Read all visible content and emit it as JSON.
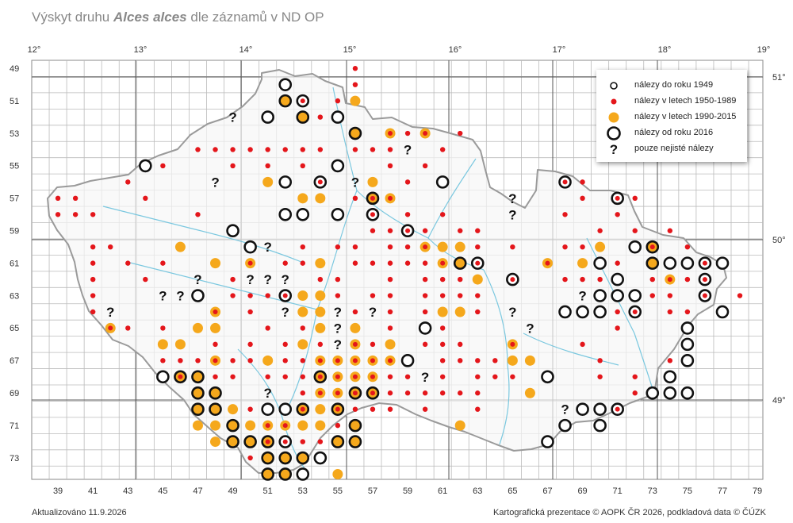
{
  "title": {
    "prefix": "Výskyt druhu ",
    "species": "Alces alces",
    "suffix": " dle záznamů v ND OP"
  },
  "axes": {
    "top_degrees": [
      "12°",
      "13°",
      "14°",
      "15°",
      "16°",
      "17°",
      "18°",
      "19°"
    ],
    "right_degrees": [
      "51°",
      "50°",
      "49°"
    ],
    "left_rows": [
      "49",
      "51",
      "53",
      "55",
      "57",
      "59",
      "61",
      "63",
      "65",
      "67",
      "69",
      "71",
      "73"
    ],
    "bottom_cols": [
      "39",
      "41",
      "43",
      "45",
      "47",
      "49",
      "51",
      "53",
      "55",
      "57",
      "59",
      "61",
      "63",
      "65",
      "67",
      "69",
      "71",
      "73",
      "75",
      "77",
      "79"
    ]
  },
  "legend": [
    {
      "symbol": "small-ring",
      "label": "nálezy do roku 1949"
    },
    {
      "symbol": "red-dot",
      "label": "nálezy v letech 1950-1989"
    },
    {
      "symbol": "orange-dot",
      "label": "nálezy v letech 1990-2015"
    },
    {
      "symbol": "big-ring",
      "label": "nálezy od roku 2016"
    },
    {
      "symbol": "question",
      "label": "pouze nejisté nálezy"
    }
  ],
  "colors": {
    "red": "#e4161b",
    "orange": "#f5a81c",
    "ring": "#111111",
    "grid": "#bbbbbb",
    "major_grid": "#555555",
    "border": "#9a9a9a",
    "rivers": "#6ec3dd"
  },
  "footer": {
    "updated": "Aktualizováno 11.9.2026",
    "credit": "Kartografická prezentace © AOPK ČR 2026, podkladová data © ČÚZK"
  }
}
